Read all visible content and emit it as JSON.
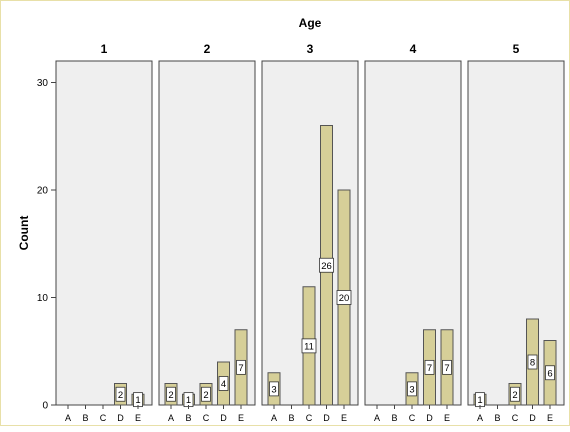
{
  "chart_data": {
    "type": "bar",
    "title": "Age",
    "xlabel": "",
    "ylabel": "Count",
    "ylim": [
      0,
      32
    ],
    "yticks": [
      0,
      10,
      20,
      30
    ],
    "categories": [
      "A",
      "B",
      "C",
      "D",
      "E"
    ],
    "grid": false,
    "bar_color": "#d6cf98",
    "panel_color": "#efefef",
    "panels": [
      {
        "name": "1",
        "values": [
          0,
          0,
          0,
          2,
          1
        ],
        "labels": [
          "",
          "",
          "",
          "2",
          "1"
        ]
      },
      {
        "name": "2",
        "values": [
          2,
          1,
          2,
          4,
          7
        ],
        "labels": [
          "2",
          "1",
          "2",
          "4",
          "7"
        ]
      },
      {
        "name": "3",
        "values": [
          3,
          0,
          11,
          26,
          20
        ],
        "labels": [
          "3",
          "",
          "11",
          "26",
          "20"
        ]
      },
      {
        "name": "4",
        "values": [
          0,
          0,
          3,
          7,
          7
        ],
        "labels": [
          "",
          "",
          "3",
          "7",
          "7"
        ]
      },
      {
        "name": "5",
        "values": [
          1,
          0,
          2,
          8,
          6
        ],
        "labels": [
          "1",
          "",
          "2",
          "8",
          "6"
        ]
      }
    ]
  }
}
